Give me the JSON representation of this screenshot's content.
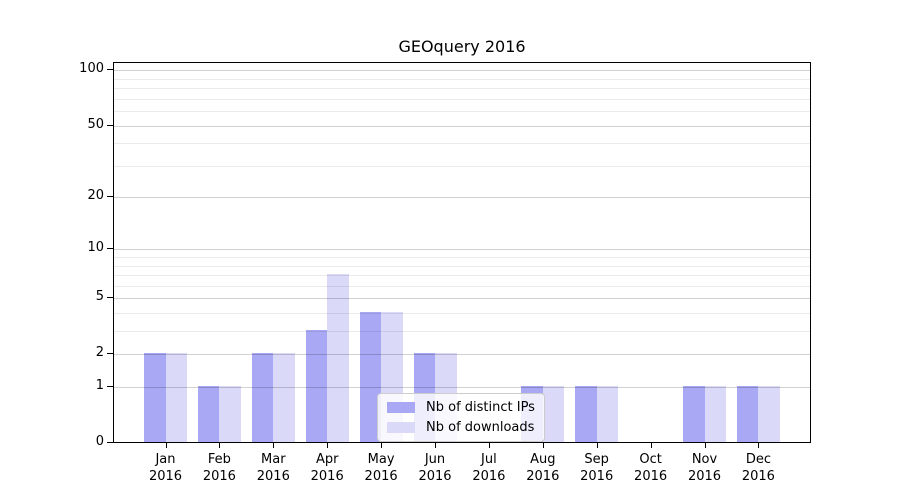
{
  "chart_data": {
    "type": "bar",
    "title": "GEOquery 2016",
    "categories": [
      "Jan",
      "Feb",
      "Mar",
      "Apr",
      "May",
      "Jun",
      "Jul",
      "Aug",
      "Sep",
      "Oct",
      "Nov",
      "Dec"
    ],
    "x_tick_year": "2016",
    "series": [
      {
        "name": "Nb of distinct IPs",
        "color": "#a8a8f5",
        "values": [
          2,
          1,
          2,
          3,
          4,
          2,
          0,
          1,
          1,
          0,
          1,
          1
        ]
      },
      {
        "name": "Nb of downloads",
        "color": "#dadaf8",
        "values": [
          2,
          1,
          2,
          7,
          4,
          2,
          0,
          1,
          1,
          0,
          1,
          1
        ]
      }
    ],
    "y_axis": {
      "scale": "log10(1+x)",
      "ylim": [
        0,
        100
      ],
      "major_ticks": [
        0,
        1,
        2,
        5,
        10,
        20,
        50,
        100
      ],
      "minor_gridlines": [
        3,
        4,
        6,
        7,
        8,
        9,
        30,
        40,
        60,
        70,
        80,
        90
      ]
    },
    "legend": {
      "position": "lower center",
      "labels": [
        "Nb of distinct IPs",
        "Nb of downloads"
      ]
    },
    "grid": true,
    "colors": {
      "axis": "#000000",
      "major_gridline_rgba": "rgba(0,0,0,0.18)",
      "minor_gridline_rgba": "rgba(0,0,0,0.08)",
      "legend_border": "#cccccc",
      "background": "#ffffff"
    }
  }
}
